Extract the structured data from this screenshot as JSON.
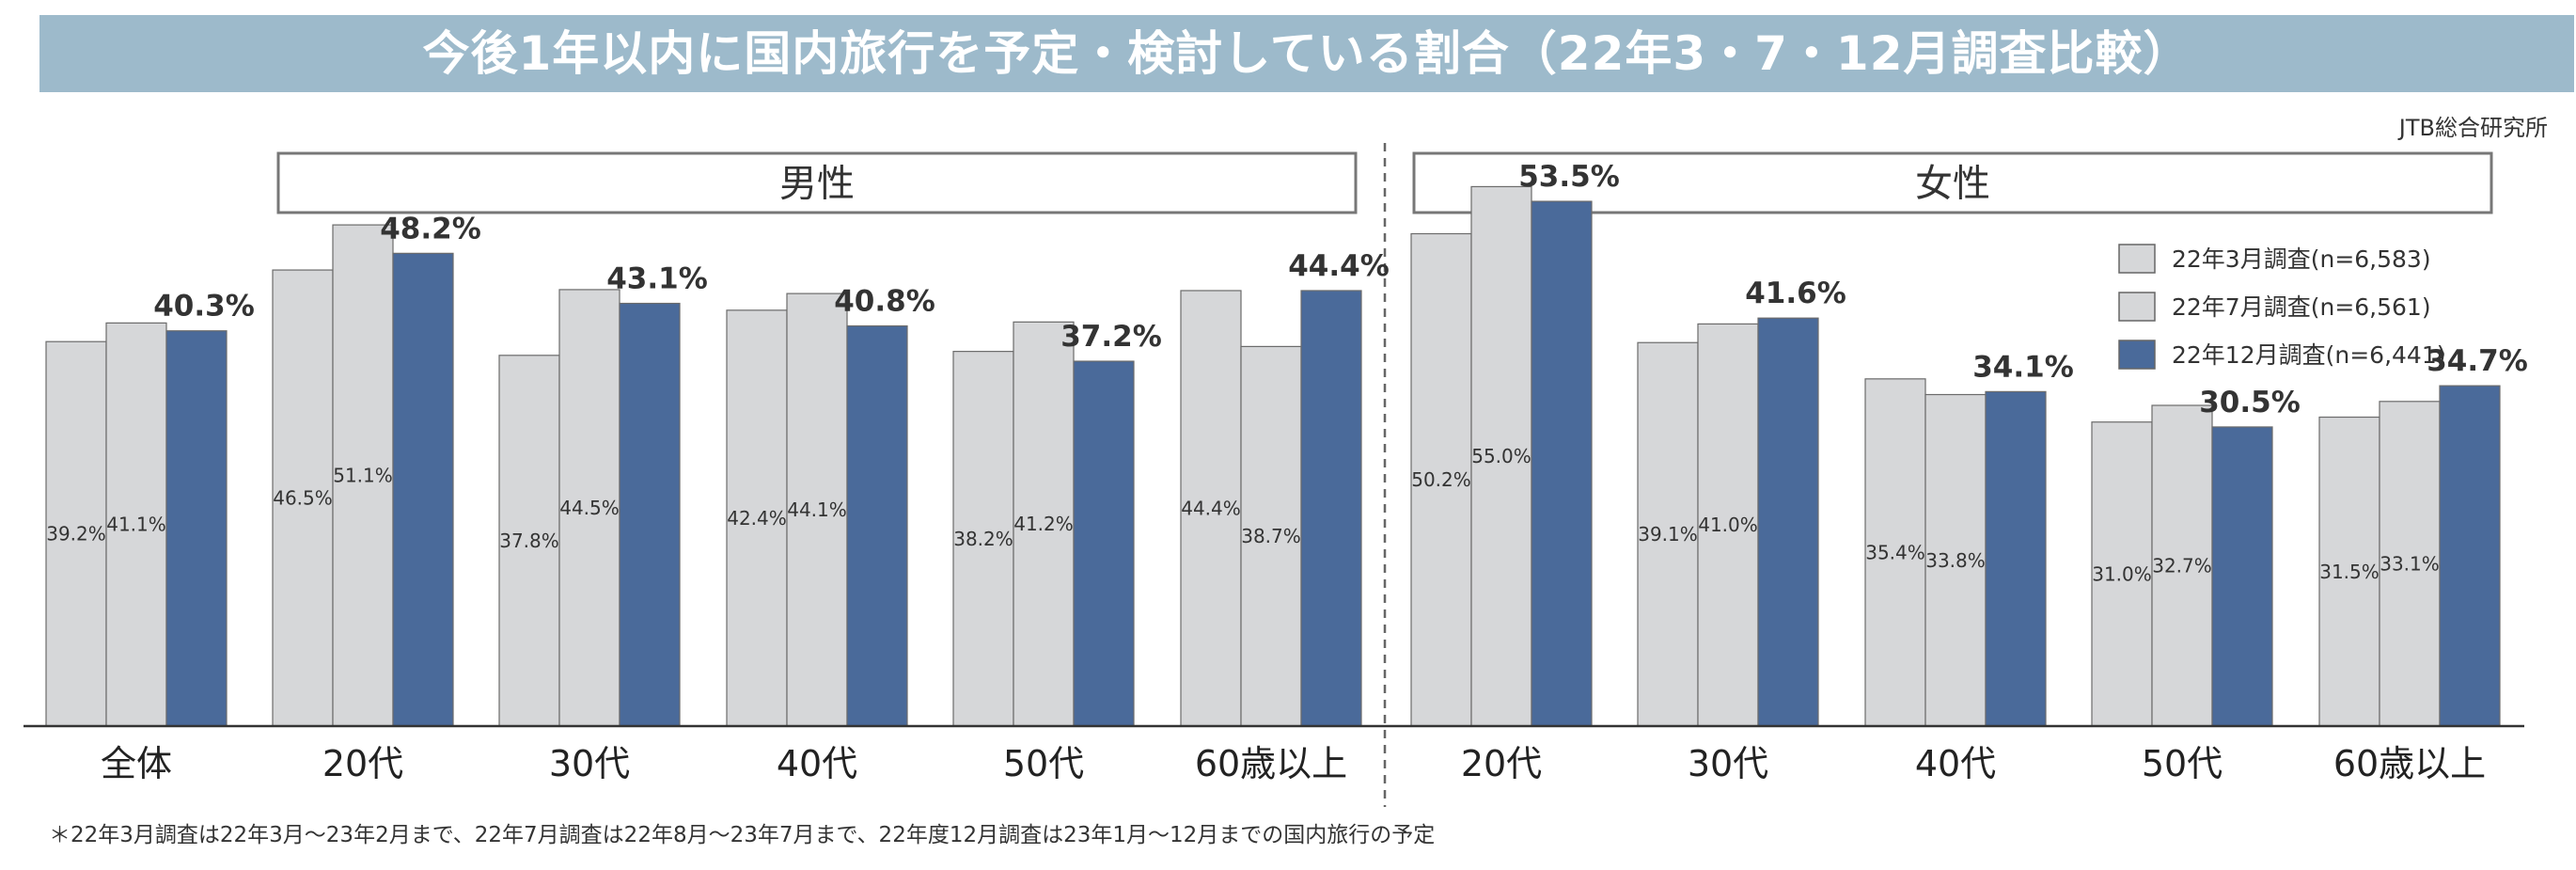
{
  "title": "今後1年以内に国内旅行を予定・検討している割合（22年3・7・12月調査比較）",
  "source": "JTB総合研究所",
  "footnote": "＊22年3月調査は22年3月～23年2月まで、22年7月調査は22年8月～23年7月まで、22年度12月調査は23年1月～12月までの国内旅行の予定",
  "colors": {
    "title_bg": "#9dbacb",
    "series_march": "#d6d7d9",
    "series_july": "#d6d7d9",
    "series_december": "#4a6a9a",
    "bar_stroke": "#6b6b6b",
    "axis": "#333333"
  },
  "chart_data": {
    "type": "bar",
    "title": "今後1年以内に国内旅行を予定・検討している割合（22年3・7・12月調査比較）",
    "ylim": [
      0,
      70
    ],
    "unit": "%",
    "series": [
      {
        "name": "22年3月調査(n=6,583)",
        "key": "march"
      },
      {
        "name": "22年7月調査(n=6,561)",
        "key": "july"
      },
      {
        "name": "22年12月調査(n=6,441)",
        "key": "december"
      }
    ],
    "groups": [
      {
        "name": "全体",
        "gender_label": "",
        "categories": [
          {
            "label": "全体",
            "values": [
              39.2,
              41.1,
              40.3
            ]
          }
        ]
      },
      {
        "name": "男性",
        "gender_label": "男性",
        "categories": [
          {
            "label": "20代",
            "values": [
              46.5,
              51.1,
              48.2
            ]
          },
          {
            "label": "30代",
            "values": [
              37.8,
              44.5,
              43.1
            ]
          },
          {
            "label": "40代",
            "values": [
              42.4,
              44.1,
              40.8
            ]
          },
          {
            "label": "50代",
            "values": [
              38.2,
              41.2,
              37.2
            ]
          },
          {
            "label": "60歳以上",
            "values": [
              44.4,
              38.7,
              44.4
            ]
          }
        ]
      },
      {
        "name": "女性",
        "gender_label": "女性",
        "categories": [
          {
            "label": "20代",
            "values": [
              50.2,
              55.0,
              53.5
            ]
          },
          {
            "label": "30代",
            "values": [
              39.1,
              41.0,
              41.6
            ]
          },
          {
            "label": "40代",
            "values": [
              35.4,
              33.8,
              34.1
            ]
          },
          {
            "label": "50代",
            "values": [
              31.0,
              32.7,
              30.5
            ]
          },
          {
            "label": "60歳以上",
            "values": [
              31.5,
              33.1,
              34.7
            ]
          }
        ]
      }
    ]
  }
}
